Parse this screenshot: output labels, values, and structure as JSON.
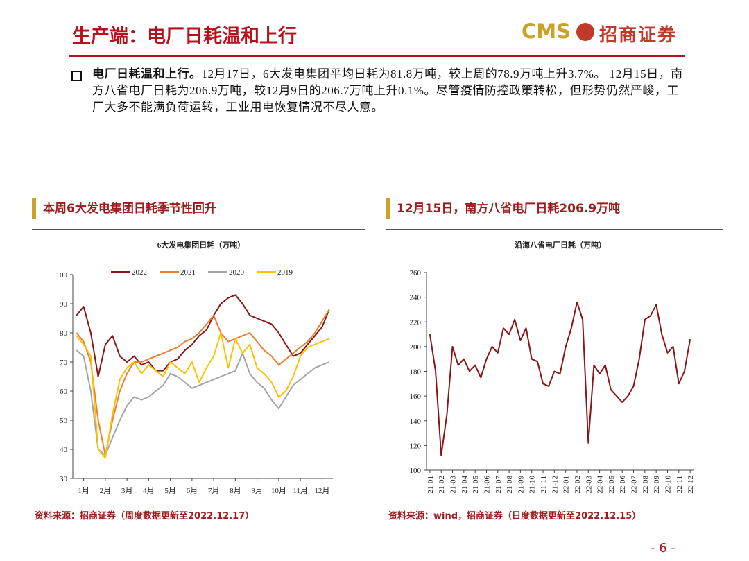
{
  "header": {
    "title": "生产端：电厂日耗温和上行",
    "logo_cms": "CMS",
    "logo_name": "招商证券"
  },
  "body": {
    "lead": "电厂日耗温和上行。",
    "text": "12月17日，6大发电集团平均日耗为81.8万吨，较上周的78.9万吨上升3.7%。 12月15日，南方八省电厂日耗为206.9万吨，较12月9日的206.7万吨上升0.1%。尽管疫情防控政策转松，但形势仍然严峻，工厂大多不能满负荷运转，工业用电恢复情况不尽人意。"
  },
  "panels": [
    {
      "title": "本周6大发电集团日耗季节性回升",
      "source": "资料来源：招商证券（周度数据更新至2022.12.17）"
    },
    {
      "title": "12月15日，南方八省电厂日耗206.9万吨",
      "source": "资料来源：wind，招商证券（日度数据更新至2022.12.15）"
    }
  ],
  "page_number": "- 6 -",
  "chart_data": [
    {
      "type": "line",
      "title": "6大发电集团日耗（万吨）",
      "x": [
        0.17,
        0.5,
        0.83,
        1.17,
        1.5,
        1.83,
        2.17,
        2.5,
        2.83,
        3.17,
        3.5,
        3.83,
        4.17,
        4.5,
        4.83,
        5.17,
        5.5,
        5.83,
        6.17,
        6.5,
        6.83,
        7.17,
        7.5,
        7.83,
        8.17,
        8.5,
        8.83,
        9.17,
        9.5,
        9.83,
        10.17,
        10.5,
        10.83,
        11.17,
        11.5,
        11.83
      ],
      "xlim": [
        0,
        12
      ],
      "xticks": [
        {
          "value": 0.5,
          "label": "1月"
        },
        {
          "value": 1.5,
          "label": "2月"
        },
        {
          "value": 2.5,
          "label": "3月"
        },
        {
          "value": 3.5,
          "label": "4月"
        },
        {
          "value": 4.5,
          "label": "5月"
        },
        {
          "value": 5.5,
          "label": "6月"
        },
        {
          "value": 6.5,
          "label": "7月"
        },
        {
          "value": 7.5,
          "label": "8月"
        },
        {
          "value": 8.5,
          "label": "9月"
        },
        {
          "value": 9.5,
          "label": "10月"
        },
        {
          "value": 10.5,
          "label": "11月"
        },
        {
          "value": 11.5,
          "label": "12月"
        }
      ],
      "ylim": [
        30,
        100
      ],
      "yticks": [
        30,
        40,
        50,
        60,
        70,
        80,
        90,
        100
      ],
      "series": [
        {
          "name": "2022",
          "color": "#8b1414",
          "values": [
            86,
            89,
            80,
            65,
            76,
            79,
            72,
            70,
            72,
            69,
            70,
            67,
            67,
            70,
            71,
            74,
            76,
            79,
            81,
            86,
            90,
            92,
            93,
            90,
            86,
            85,
            84,
            83,
            80,
            76,
            72,
            73,
            76,
            79,
            82,
            88
          ]
        },
        {
          "name": "2021",
          "color": "#ed7d31",
          "values": [
            80,
            77,
            70,
            50,
            38,
            50,
            60,
            66,
            70,
            70,
            71,
            72,
            73,
            74,
            75,
            77,
            78,
            80,
            83,
            86,
            80,
            77,
            78,
            79,
            80,
            77,
            74,
            72,
            69,
            71,
            73,
            75,
            77,
            80,
            84,
            88
          ]
        },
        {
          "name": "2020",
          "color": "#a5a5a5",
          "values": [
            74,
            72,
            60,
            40,
            38,
            44,
            50,
            55,
            58,
            57,
            58,
            60,
            62,
            66,
            65,
            63,
            61,
            62,
            63,
            64,
            65,
            66,
            67,
            73,
            66,
            63,
            61,
            57,
            54,
            58,
            62,
            64,
            66,
            68,
            69,
            70
          ]
        },
        {
          "name": "2019",
          "color": "#ffc000",
          "values": [
            79,
            76,
            72,
            40,
            37,
            52,
            64,
            68,
            70,
            66,
            69,
            67,
            65,
            70,
            68,
            66,
            70,
            63,
            68,
            72,
            80,
            68,
            78,
            73,
            76,
            68,
            66,
            63,
            58,
            60,
            65,
            72,
            75,
            76,
            77,
            78
          ]
        }
      ]
    },
    {
      "type": "line",
      "title": "沿海八省电厂日耗（万吨）",
      "x": [
        0,
        0.5,
        1,
        1.5,
        2,
        2.5,
        3,
        3.5,
        4,
        4.5,
        5,
        5.5,
        6,
        6.5,
        7,
        7.5,
        8,
        8.5,
        9,
        9.5,
        10,
        10.5,
        11,
        11.5,
        12,
        12.5,
        13,
        13.5,
        14,
        14.5,
        15,
        15.5,
        16,
        16.5,
        17,
        17.5,
        18,
        18.5,
        19,
        19.5,
        20,
        20.5,
        21,
        21.5,
        22,
        22.5,
        23
      ],
      "xlim": [
        -0.3,
        23.3
      ],
      "xticks": [
        {
          "value": 0,
          "label": "21-01"
        },
        {
          "value": 1,
          "label": "21-02"
        },
        {
          "value": 2,
          "label": "21-03"
        },
        {
          "value": 3,
          "label": "21-04"
        },
        {
          "value": 4,
          "label": "21-05"
        },
        {
          "value": 5,
          "label": "21-06"
        },
        {
          "value": 6,
          "label": "21-07"
        },
        {
          "value": 7,
          "label": "21-08"
        },
        {
          "value": 8,
          "label": "21-09"
        },
        {
          "value": 9,
          "label": "21-10"
        },
        {
          "value": 10,
          "label": "21-11"
        },
        {
          "value": 11,
          "label": "21-12"
        },
        {
          "value": 12,
          "label": "22-01"
        },
        {
          "value": 13,
          "label": "22-02"
        },
        {
          "value": 14,
          "label": "22-03"
        },
        {
          "value": 15,
          "label": "22-04"
        },
        {
          "value": 16,
          "label": "22-05"
        },
        {
          "value": 17,
          "label": "22-06"
        },
        {
          "value": 18,
          "label": "22-07"
        },
        {
          "value": 19,
          "label": "22-08"
        },
        {
          "value": 20,
          "label": "22-09"
        },
        {
          "value": 21,
          "label": "22-10"
        },
        {
          "value": 22,
          "label": "22-11"
        },
        {
          "value": 23,
          "label": "22-12"
        }
      ],
      "ylim": [
        100,
        260
      ],
      "yticks": [
        100,
        120,
        140,
        160,
        180,
        200,
        220,
        240,
        260
      ],
      "color": "#8b1414",
      "values": [
        210,
        180,
        112,
        145,
        200,
        185,
        190,
        180,
        185,
        175,
        190,
        200,
        195,
        215,
        210,
        222,
        205,
        215,
        190,
        188,
        170,
        168,
        180,
        178,
        200,
        215,
        236,
        222,
        122,
        185,
        178,
        185,
        165,
        160,
        155,
        160,
        168,
        190,
        222,
        225,
        234,
        210,
        195,
        200,
        170,
        180,
        206
      ]
    }
  ]
}
